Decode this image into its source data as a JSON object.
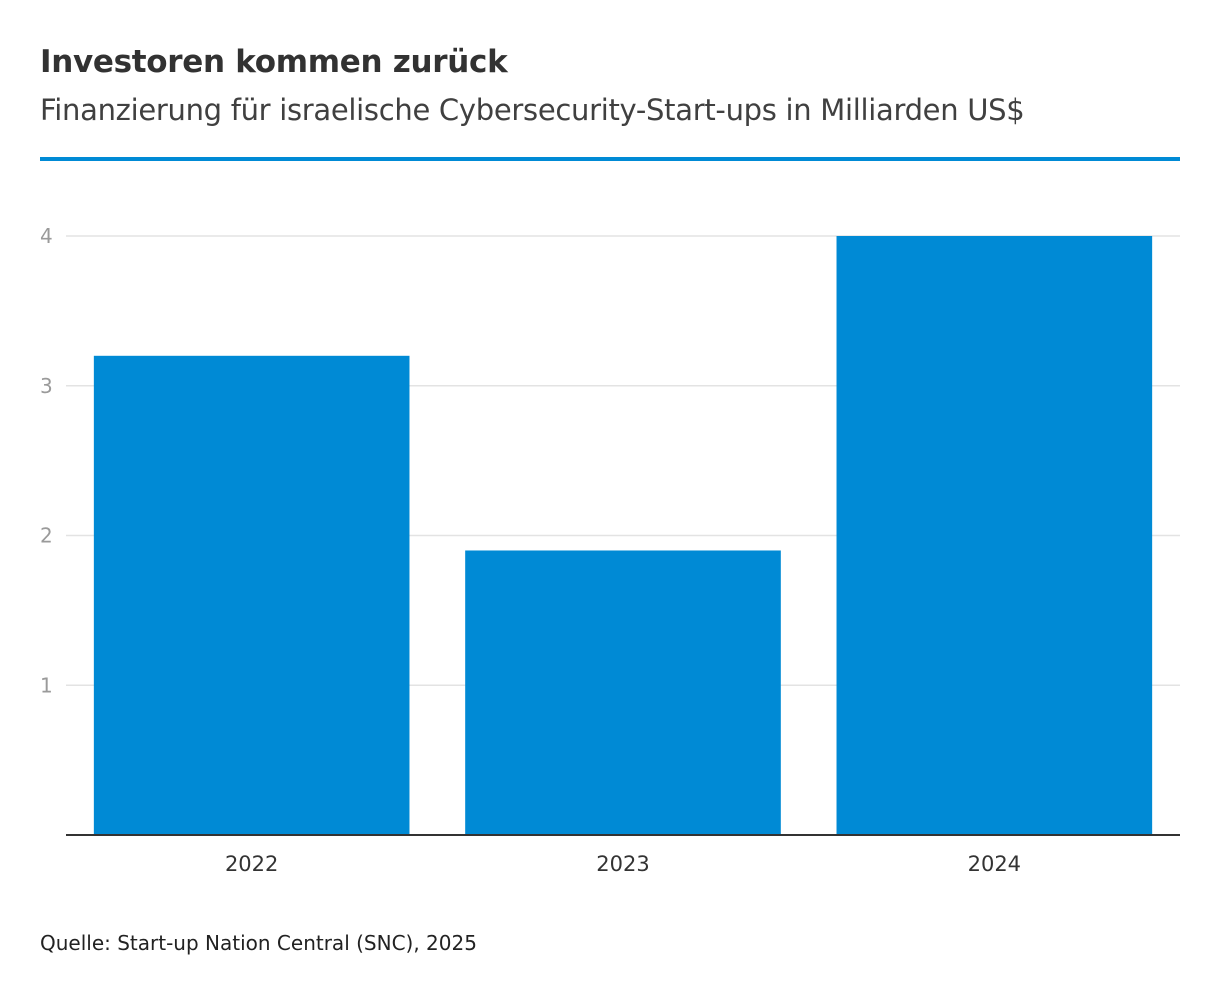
{
  "title": "Investoren kommen zurück",
  "subtitle": "Finanzierung für israelische Cybersecurity-Start-ups in Milliarden US$",
  "source": "Quelle: Start-up Nation Central (SNC), 2025",
  "colors": {
    "bar": "#008ad5",
    "accent": "#008ad5",
    "grid": "#e3e3e3",
    "axis": "#333333"
  },
  "chart_data": {
    "type": "bar",
    "categories": [
      "2022",
      "2023",
      "2024"
    ],
    "values": [
      3.2,
      1.9,
      4.0
    ],
    "title": "Investoren kommen zurück",
    "subtitle": "Finanzierung für israelische Cybersecurity-Start-ups in Milliarden US$",
    "xlabel": "",
    "ylabel": "",
    "ylim": [
      0,
      4
    ],
    "yticks": [
      1,
      2,
      3,
      4
    ],
    "grid": true,
    "legend": "none"
  }
}
